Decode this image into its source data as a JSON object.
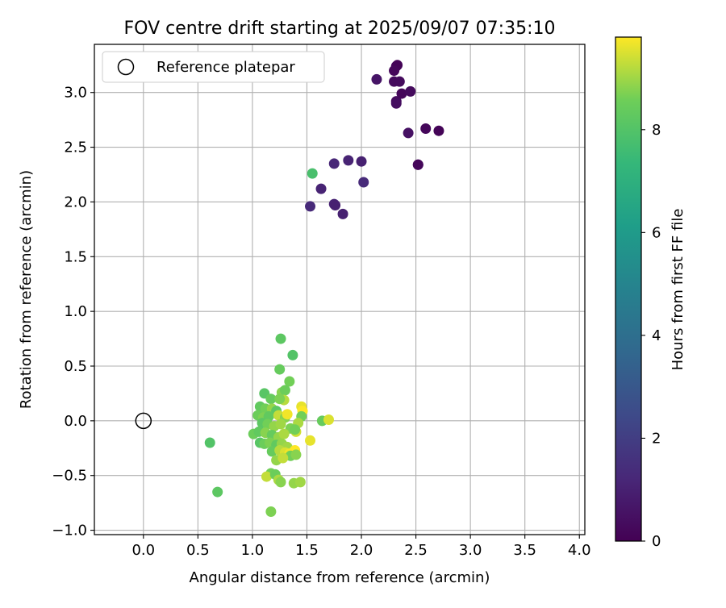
{
  "chart_data": {
    "type": "scatter",
    "title": "FOV centre drift starting at 2025/09/07 07:35:10",
    "xlabel": "Angular distance from reference (arcmin)",
    "ylabel": "Rotation from reference (arcmin)",
    "xlim": [
      -0.45,
      4.05
    ],
    "ylim": [
      -1.04,
      3.44
    ],
    "xticks": [
      0.0,
      0.5,
      1.0,
      1.5,
      2.0,
      2.5,
      3.0,
      3.5,
      4.0
    ],
    "xtick_labels": [
      "0.0",
      "0.5",
      "1.0",
      "1.5",
      "2.0",
      "2.5",
      "3.0",
      "3.5",
      "4.0"
    ],
    "yticks": [
      -1.0,
      -0.5,
      0.0,
      0.5,
      1.0,
      1.5,
      2.0,
      2.5,
      3.0
    ],
    "ytick_labels": [
      "−1.0",
      "−0.5",
      "0.0",
      "0.5",
      "1.0",
      "1.5",
      "2.0",
      "2.5",
      "3.0"
    ],
    "grid": true,
    "legend": {
      "position": "top-left",
      "label": "Reference platepar"
    },
    "reference_point": {
      "x": 0.0,
      "y": 0.0
    },
    "colorbar": {
      "label": "Hours from first FF file",
      "colormap": "viridis",
      "range": [
        0,
        9.8
      ],
      "ticks": [
        0,
        2,
        4,
        6,
        8
      ],
      "tick_labels": [
        "0",
        "2",
        "4",
        "6",
        "8"
      ]
    },
    "points": [
      {
        "x": 2.32,
        "y": 3.24,
        "t": 0.2
      },
      {
        "x": 2.33,
        "y": 3.25,
        "t": 0.1
      },
      {
        "x": 2.3,
        "y": 3.2,
        "t": 0.2
      },
      {
        "x": 2.3,
        "y": 3.1,
        "t": 0.3
      },
      {
        "x": 2.35,
        "y": 3.1,
        "t": 0.3
      },
      {
        "x": 2.14,
        "y": 3.12,
        "t": 0.6
      },
      {
        "x": 2.37,
        "y": 2.99,
        "t": 0.2
      },
      {
        "x": 2.45,
        "y": 3.01,
        "t": 0.3
      },
      {
        "x": 2.32,
        "y": 2.92,
        "t": 0.3
      },
      {
        "x": 2.32,
        "y": 2.9,
        "t": 0.4
      },
      {
        "x": 2.43,
        "y": 2.63,
        "t": 0.5
      },
      {
        "x": 2.59,
        "y": 2.67,
        "t": 0.2
      },
      {
        "x": 2.71,
        "y": 2.65,
        "t": 0.1
      },
      {
        "x": 2.52,
        "y": 2.34,
        "t": 0.1
      },
      {
        "x": 2.52,
        "y": 2.34,
        "t": 0.2
      },
      {
        "x": 1.75,
        "y": 2.35,
        "t": 1.2
      },
      {
        "x": 1.88,
        "y": 2.38,
        "t": 1.1
      },
      {
        "x": 2.0,
        "y": 2.37,
        "t": 1.0
      },
      {
        "x": 2.02,
        "y": 2.18,
        "t": 1.3
      },
      {
        "x": 1.63,
        "y": 2.12,
        "t": 1.1
      },
      {
        "x": 1.55,
        "y": 2.26,
        "t": 7.8
      },
      {
        "x": 1.53,
        "y": 1.96,
        "t": 1.3
      },
      {
        "x": 1.75,
        "y": 1.98,
        "t": 1.1
      },
      {
        "x": 1.76,
        "y": 1.97,
        "t": 1.0
      },
      {
        "x": 1.83,
        "y": 1.89,
        "t": 1.0
      },
      {
        "x": 1.26,
        "y": 0.75,
        "t": 8.2
      },
      {
        "x": 1.37,
        "y": 0.6,
        "t": 8.0
      },
      {
        "x": 1.25,
        "y": 0.47,
        "t": 8.4
      },
      {
        "x": 1.34,
        "y": 0.36,
        "t": 8.6
      },
      {
        "x": 1.11,
        "y": 0.25,
        "t": 8.1
      },
      {
        "x": 1.27,
        "y": 0.26,
        "t": 8.8
      },
      {
        "x": 1.3,
        "y": 0.28,
        "t": 8.5
      },
      {
        "x": 1.29,
        "y": 0.19,
        "t": 9.2
      },
      {
        "x": 1.17,
        "y": 0.2,
        "t": 8.4
      },
      {
        "x": 1.25,
        "y": 0.2,
        "t": 8.7
      },
      {
        "x": 1.07,
        "y": 0.13,
        "t": 8.3
      },
      {
        "x": 1.12,
        "y": 0.11,
        "t": 8.6
      },
      {
        "x": 1.18,
        "y": 0.11,
        "t": 8.9
      },
      {
        "x": 1.22,
        "y": 0.09,
        "t": 8.2
      },
      {
        "x": 1.45,
        "y": 0.13,
        "t": 9.6
      },
      {
        "x": 1.46,
        "y": 0.09,
        "t": 9.8
      },
      {
        "x": 1.05,
        "y": 0.05,
        "t": 8.5
      },
      {
        "x": 1.1,
        "y": 0.03,
        "t": 8.7
      },
      {
        "x": 1.15,
        "y": 0.04,
        "t": 8.3
      },
      {
        "x": 1.24,
        "y": 0.05,
        "t": 9.3
      },
      {
        "x": 1.3,
        "y": 0.03,
        "t": 8.8
      },
      {
        "x": 1.32,
        "y": 0.06,
        "t": 9.7
      },
      {
        "x": 1.45,
        "y": 0.04,
        "t": 8.6
      },
      {
        "x": 1.42,
        "y": -0.02,
        "t": 9.1
      },
      {
        "x": 1.64,
        "y": 0.0,
        "t": 8.4
      },
      {
        "x": 1.7,
        "y": 0.01,
        "t": 9.5
      },
      {
        "x": 1.09,
        "y": -0.02,
        "t": 8.2
      },
      {
        "x": 1.14,
        "y": -0.03,
        "t": 8.6
      },
      {
        "x": 1.2,
        "y": -0.05,
        "t": 8.9
      },
      {
        "x": 1.26,
        "y": -0.03,
        "t": 9.0
      },
      {
        "x": 1.35,
        "y": -0.07,
        "t": 8.7
      },
      {
        "x": 1.4,
        "y": -0.1,
        "t": 9.4
      },
      {
        "x": 1.01,
        "y": -0.12,
        "t": 8.5
      },
      {
        "x": 1.06,
        "y": -0.1,
        "t": 8.3
      },
      {
        "x": 1.12,
        "y": -0.11,
        "t": 8.8
      },
      {
        "x": 1.18,
        "y": -0.13,
        "t": 8.4
      },
      {
        "x": 1.24,
        "y": -0.15,
        "t": 8.9
      },
      {
        "x": 1.29,
        "y": -0.12,
        "t": 9.1
      },
      {
        "x": 1.39,
        "y": -0.08,
        "t": 8.6
      },
      {
        "x": 1.53,
        "y": -0.18,
        "t": 9.6
      },
      {
        "x": 0.61,
        "y": -0.2,
        "t": 8.0
      },
      {
        "x": 1.07,
        "y": -0.2,
        "t": 8.1
      },
      {
        "x": 1.11,
        "y": -0.21,
        "t": 8.5
      },
      {
        "x": 1.16,
        "y": -0.2,
        "t": 8.7
      },
      {
        "x": 1.22,
        "y": -0.22,
        "t": 8.3
      },
      {
        "x": 1.27,
        "y": -0.21,
        "t": 8.9
      },
      {
        "x": 1.32,
        "y": -0.24,
        "t": 9.0
      },
      {
        "x": 1.18,
        "y": -0.28,
        "t": 8.4
      },
      {
        "x": 1.25,
        "y": -0.27,
        "t": 9.2
      },
      {
        "x": 1.3,
        "y": -0.29,
        "t": 9.5
      },
      {
        "x": 1.34,
        "y": -0.3,
        "t": 9.7
      },
      {
        "x": 1.39,
        "y": -0.27,
        "t": 9.8
      },
      {
        "x": 1.35,
        "y": -0.32,
        "t": 8.6
      },
      {
        "x": 1.4,
        "y": -0.31,
        "t": 8.8
      },
      {
        "x": 1.22,
        "y": -0.36,
        "t": 8.9
      },
      {
        "x": 1.28,
        "y": -0.34,
        "t": 9.3
      },
      {
        "x": 1.17,
        "y": -0.48,
        "t": 8.6
      },
      {
        "x": 1.13,
        "y": -0.51,
        "t": 9.3
      },
      {
        "x": 1.21,
        "y": -0.49,
        "t": 8.5
      },
      {
        "x": 1.24,
        "y": -0.54,
        "t": 9.1
      },
      {
        "x": 1.26,
        "y": -0.56,
        "t": 8.8
      },
      {
        "x": 1.38,
        "y": -0.57,
        "t": 8.9
      },
      {
        "x": 1.44,
        "y": -0.56,
        "t": 9.0
      },
      {
        "x": 0.68,
        "y": -0.65,
        "t": 8.2
      },
      {
        "x": 1.17,
        "y": -0.83,
        "t": 8.7
      }
    ]
  }
}
